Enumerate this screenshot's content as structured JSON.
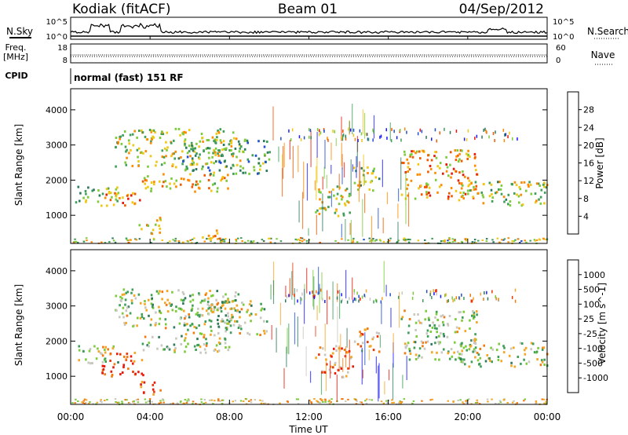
{
  "header": {
    "station": "Kodiak (fitACF)",
    "beam": "Beam 01",
    "date": "04/Sep/2012"
  },
  "noise_panel": {
    "left_label": "N.Sky",
    "right_label": "N.Search",
    "left_ticks": [
      "10^5",
      "10^0"
    ],
    "right_ticks": [
      "10^5",
      "10^0"
    ]
  },
  "freq_panel": {
    "left_label_1": "Freq.",
    "left_label_2": "[MHz]",
    "right_label": "Nave",
    "left_ticks": [
      "18",
      "8"
    ],
    "right_ticks": [
      "60",
      "0"
    ]
  },
  "cpid": {
    "label": "CPID",
    "value": "normal (fast) 151 RF"
  },
  "colors": {
    "power_scale": [
      "#1a1aff",
      "#1f4fd0",
      "#2e7a5c",
      "#3f9e58",
      "#7ccb3b",
      "#f0c814",
      "#ff8a00",
      "#f25a00",
      "#e81a0a"
    ],
    "velocity_scale": [
      "#1a1aff",
      "#1f4fd0",
      "#2e7a5c",
      "#3f9e58",
      "#7ccb3b",
      "#c8c8c0",
      "#f5a623",
      "#f27a10",
      "#e83a0a",
      "#e81a0a"
    ]
  },
  "chart_data": [
    {
      "type": "heatmap",
      "panel": "power",
      "ylabel": "Slant Range [km]",
      "yticks": [
        "1000",
        "2000",
        "3000",
        "4000"
      ],
      "ylim": [
        200,
        4600
      ],
      "xlim": [
        0,
        24
      ],
      "colorbar_label": "Power [dB]",
      "colorbar_ticks": [
        "4",
        "8",
        "12",
        "16",
        "20",
        "24",
        "28"
      ],
      "bands": [
        {
          "t0": 0.2,
          "t1": 2.5,
          "r0": 1400,
          "r1": 1900,
          "level": 0.45
        },
        {
          "t0": 1.5,
          "t1": 3.8,
          "r0": 1300,
          "r1": 1700,
          "level": 0.8
        },
        {
          "t0": 3.5,
          "t1": 8.0,
          "r0": 1700,
          "r1": 2200,
          "level": 0.65
        },
        {
          "t0": 2.2,
          "t1": 8.5,
          "r0": 2400,
          "r1": 3500,
          "level": 0.55
        },
        {
          "t0": 5.5,
          "t1": 10.0,
          "r0": 2200,
          "r1": 3200,
          "level": 0.4
        },
        {
          "t0": 3.4,
          "t1": 4.6,
          "r0": 500,
          "r1": 1000,
          "level": 0.6
        },
        {
          "t0": 6.5,
          "t1": 7.5,
          "r0": 300,
          "r1": 600,
          "level": 0.8
        },
        {
          "t0": 12.3,
          "t1": 14.2,
          "r0": 1000,
          "r1": 1900,
          "level": 0.55
        },
        {
          "t0": 14.2,
          "t1": 15.5,
          "r0": 1700,
          "r1": 2400,
          "level": 0.5
        },
        {
          "t0": 16.6,
          "t1": 20.5,
          "r0": 1500,
          "r1": 2900,
          "level": 0.7
        },
        {
          "t0": 19.5,
          "t1": 24.0,
          "r0": 1300,
          "r1": 2000,
          "level": 0.55
        }
      ]
    },
    {
      "type": "heatmap",
      "panel": "velocity",
      "ylabel": "Slant Range [km]",
      "yticks": [
        "1000",
        "2000",
        "3000",
        "4000"
      ],
      "ylim": [
        200,
        4600
      ],
      "xlim": [
        0,
        24
      ],
      "xlabel": "Time UT",
      "xticks": [
        "00:00",
        "04:00",
        "08:00",
        "12:00",
        "16:00",
        "20:00",
        "00:00"
      ],
      "colorbar_label": "Velocity [m s^-1]",
      "colorbar_ticks": [
        "1000",
        "500",
        "100",
        "25",
        "-25",
        "-100",
        "-500",
        "-1000"
      ],
      "bands": [
        {
          "t0": 0.2,
          "t1": 2.5,
          "r0": 1400,
          "r1": 1900,
          "level": 0.5
        },
        {
          "t0": 1.5,
          "t1": 3.8,
          "r0": 1000,
          "r1": 1700,
          "level": 0.88
        },
        {
          "t0": 3.5,
          "t1": 8.0,
          "r0": 1700,
          "r1": 2200,
          "level": 0.5
        },
        {
          "t0": 2.2,
          "t1": 8.5,
          "r0": 2400,
          "r1": 3500,
          "level": 0.5
        },
        {
          "t0": 5.5,
          "t1": 10.0,
          "r0": 2200,
          "r1": 3200,
          "level": 0.5
        },
        {
          "t0": 3.4,
          "t1": 4.6,
          "r0": 500,
          "r1": 900,
          "level": 0.85
        },
        {
          "t0": 12.3,
          "t1": 14.2,
          "r0": 1000,
          "r1": 1900,
          "level": 0.75
        },
        {
          "t0": 14.2,
          "t1": 15.5,
          "r0": 1700,
          "r1": 2400,
          "level": 0.7
        },
        {
          "t0": 16.6,
          "t1": 20.5,
          "r0": 1500,
          "r1": 2900,
          "level": 0.5
        },
        {
          "t0": 19.5,
          "t1": 24.0,
          "r0": 1300,
          "r1": 2000,
          "level": 0.5
        }
      ]
    }
  ]
}
